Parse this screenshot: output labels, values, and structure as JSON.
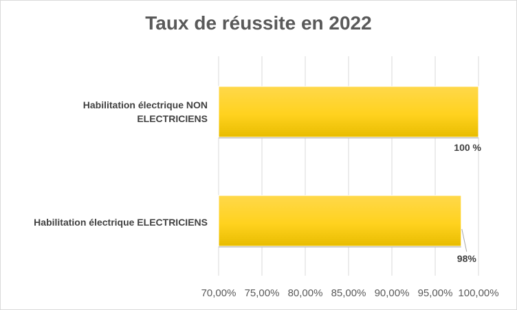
{
  "chart_data": {
    "type": "bar",
    "orientation": "horizontal",
    "title": "Taux de réussite en 2022",
    "categories": [
      "Habilitation électrique NON ELECTRICIENS",
      "Habilitation électrique ELECTRICIENS"
    ],
    "category_lines": [
      [
        "Habilitation électrique NON",
        "ELECTRICIENS"
      ],
      [
        "Habilitation électrique ELECTRICIENS"
      ]
    ],
    "values": [
      1.0,
      0.98
    ],
    "data_labels": [
      "100 %",
      "98%"
    ],
    "xlim": [
      0.7,
      1.0
    ],
    "x_ticks": [
      0.7,
      0.75,
      0.8,
      0.85,
      0.9,
      0.95,
      1.0
    ],
    "x_tick_labels": [
      "70,00%",
      "75,00%",
      "80,00%",
      "85,00%",
      "90,00%",
      "95,00%",
      "100,00%"
    ],
    "grid": true,
    "legend": "none",
    "bar_color": "#FFD21F",
    "bar_color_dark": "#E6B800"
  }
}
